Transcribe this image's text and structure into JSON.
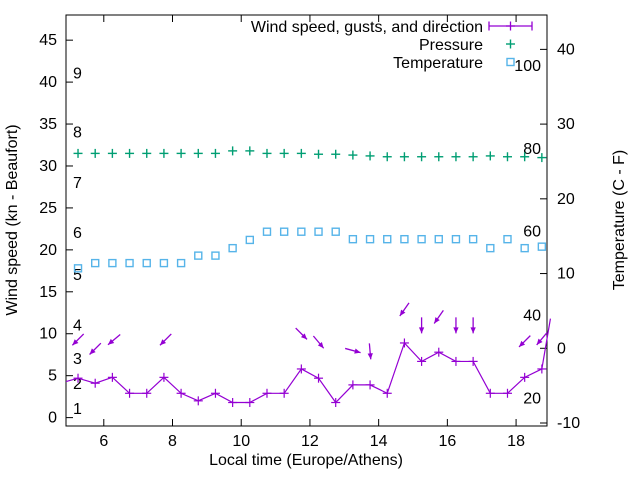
{
  "chart_data": {
    "type": "line",
    "title": "",
    "xlabel": "Local time (Europe/Athens)",
    "ylabel_left": "Wind speed (kn - Beaufort)",
    "ylabel_right": "Temperature (C - F)",
    "background": "#ffffff",
    "axis_color": "#000000",
    "grid": "off",
    "legend_position": "top-right-inside",
    "x_range": [
      4.9,
      18.9
    ],
    "y_left_range": [
      -1,
      48
    ],
    "y_right_range": [
      -10.4,
      44.6
    ],
    "x_ticks": [
      "6",
      "8",
      "10",
      "12",
      "14",
      "16",
      "18"
    ],
    "x_tick_values": [
      6,
      8,
      10,
      12,
      14,
      16,
      18
    ],
    "y_left_ticks": [
      "0",
      "5",
      "10",
      "15",
      "20",
      "25",
      "30",
      "35",
      "40",
      "45"
    ],
    "y_left_tick_values": [
      0,
      5,
      10,
      15,
      20,
      25,
      30,
      35,
      40,
      45
    ],
    "y_right_ticks": [
      "-10",
      "0",
      "10",
      "20",
      "30",
      "40"
    ],
    "y_right_tick_values": [
      -10,
      0,
      10,
      20,
      30,
      40
    ],
    "beaufort_scale_labels": [
      {
        "label": "1",
        "kn": 1
      },
      {
        "label": "2",
        "kn": 4
      },
      {
        "label": "3",
        "kn": 7
      },
      {
        "label": "4",
        "kn": 11
      },
      {
        "label": "5",
        "kn": 17
      },
      {
        "label": "6",
        "kn": 22
      },
      {
        "label": "7",
        "kn": 28
      },
      {
        "label": "8",
        "kn": 34
      },
      {
        "label": "9",
        "kn": 41
      }
    ],
    "fahrenheit_scale_labels": [
      {
        "label": "20",
        "celsius": -6.7
      },
      {
        "label": "40",
        "celsius": 4.4
      },
      {
        "label": "60",
        "celsius": 15.6
      },
      {
        "label": "80",
        "celsius": 26.7
      },
      {
        "label": "100",
        "celsius": 37.8
      }
    ],
    "legend": [
      {
        "label": "Wind speed, gusts, and direction",
        "color": "#9400d3",
        "marker": "errorbar-line-plus"
      },
      {
        "label": "Pressure",
        "color": "#009e73",
        "marker": "plus"
      },
      {
        "label": "Temperature",
        "color": "#56b4e9",
        "marker": "open-square"
      }
    ],
    "x_hours": [
      5.25,
      5.75,
      6.25,
      6.75,
      7.25,
      7.75,
      8.25,
      8.75,
      9.25,
      9.75,
      10.25,
      10.75,
      11.25,
      11.75,
      12.25,
      12.75,
      13.25,
      13.75,
      14.25,
      14.75,
      15.25,
      15.75,
      16.25,
      16.75,
      17.25,
      17.75,
      18.25,
      18.75
    ],
    "series": {
      "wind_speed_kn": [
        4.7,
        4.1,
        4.8,
        2.9,
        2.9,
        4.8,
        2.9,
        2.0,
        2.9,
        1.8,
        1.8,
        2.9,
        2.9,
        5.8,
        4.7,
        1.8,
        3.9,
        3.9,
        2.9,
        8.9,
        6.7,
        7.8,
        6.7,
        6.7,
        2.9,
        2.9,
        4.8,
        5.8
      ],
      "wind_edge_segments": {
        "lead": {
          "t": 4.9,
          "kn": 4.3
        },
        "tail": {
          "t": 19.0,
          "kn": 11.8
        }
      },
      "pressure_on_left_axis": [
        31.5,
        31.5,
        31.5,
        31.5,
        31.5,
        31.5,
        31.5,
        31.5,
        31.5,
        31.8,
        31.8,
        31.5,
        31.5,
        31.5,
        31.4,
        31.4,
        31.3,
        31.2,
        31.1,
        31.1,
        31.1,
        31.1,
        31.1,
        31.1,
        31.2,
        31.1,
        31.1,
        31.0
      ],
      "temperature_c": [
        10.7,
        11.4,
        11.4,
        11.4,
        11.4,
        11.4,
        11.4,
        12.4,
        12.4,
        13.4,
        14.5,
        15.6,
        15.6,
        15.6,
        15.6,
        15.6,
        14.6,
        14.6,
        14.6,
        14.6,
        14.6,
        14.6,
        14.6,
        14.6,
        13.4,
        14.6,
        13.4,
        13.6
      ]
    },
    "wind_direction_arrows": [
      {
        "t": 5.25,
        "kn": 9.3,
        "angle_deg": 225
      },
      {
        "t": 5.75,
        "kn": 8.2,
        "angle_deg": 225
      },
      {
        "t": 6.3,
        "kn": 9.3,
        "angle_deg": 230
      },
      {
        "t": 7.8,
        "kn": 9.3,
        "angle_deg": 225
      },
      {
        "t": 11.75,
        "kn": 10.0,
        "angle_deg": 135
      },
      {
        "t": 12.25,
        "kn": 9.0,
        "angle_deg": 140
      },
      {
        "t": 13.25,
        "kn": 8.0,
        "angle_deg": 105
      },
      {
        "t": 13.75,
        "kn": 7.9,
        "angle_deg": 175
      },
      {
        "t": 14.75,
        "kn": 12.9,
        "angle_deg": 215
      },
      {
        "t": 15.25,
        "kn": 11.0,
        "angle_deg": 180
      },
      {
        "t": 15.75,
        "kn": 12.0,
        "angle_deg": 215
      },
      {
        "t": 16.25,
        "kn": 11.0,
        "angle_deg": 180
      },
      {
        "t": 16.75,
        "kn": 11.0,
        "angle_deg": 180
      },
      {
        "t": 18.25,
        "kn": 9.1,
        "angle_deg": 225
      },
      {
        "t": 18.75,
        "kn": 9.4,
        "angle_deg": 220
      }
    ]
  }
}
